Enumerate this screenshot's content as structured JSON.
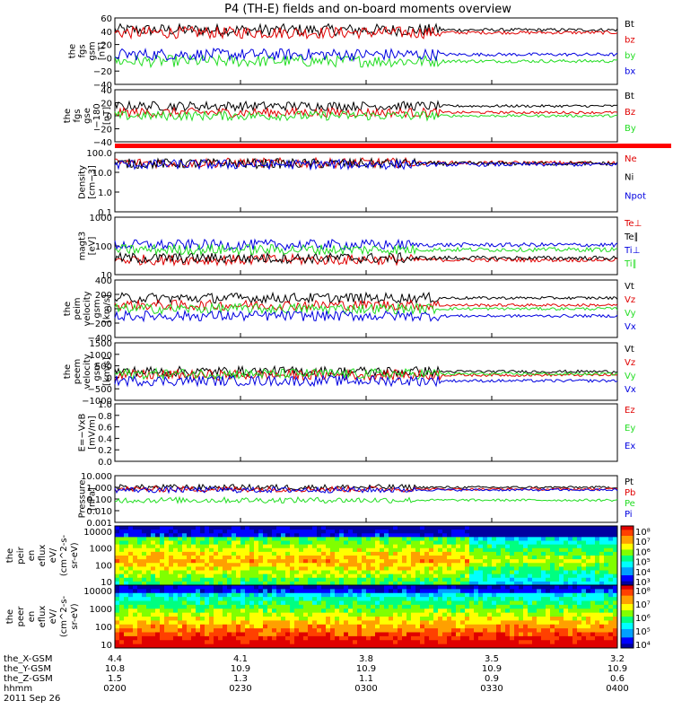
{
  "title": "P4 (TH-E) fields and on-board moments overview",
  "colors": {
    "black": "#000000",
    "red": "#e00000",
    "green": "#22dd22",
    "blue": "#0000e0"
  },
  "chart_data": {
    "type": "line",
    "time_ticks": [
      "0200",
      "0230",
      "0300",
      "0330",
      "0400"
    ],
    "date": "2011 Sep 26",
    "ephemeris": [
      {
        "label": "the_X-GSM",
        "values": [
          "4.4",
          "4.1",
          "3.8",
          "3.5",
          "3.2"
        ]
      },
      {
        "label": "the_Y-GSM",
        "values": [
          "10.8",
          "10.9",
          "10.9",
          "10.9",
          "10.9"
        ]
      },
      {
        "label": "the_Z-GSM",
        "values": [
          "1.5",
          "1.3",
          "1.1",
          "0.9",
          "0.6"
        ]
      },
      {
        "label": "hhmm",
        "values": [
          "0200",
          "0230",
          "0300",
          "0330",
          "0400"
        ]
      }
    ],
    "panels": [
      {
        "ylabel": [
          "the",
          "fgs",
          "gsm",
          "[nT]"
        ],
        "ticks": [
          "60",
          "40",
          "20",
          "0",
          "−20",
          "−40"
        ],
        "ylim": [
          -40,
          60
        ],
        "series": [
          {
            "name": "Bt",
            "color": "black",
            "level": 42
          },
          {
            "name": "bz",
            "color": "red",
            "level": 38
          },
          {
            "name": "by",
            "color": "green",
            "level": -5
          },
          {
            "name": "bx",
            "color": "blue",
            "level": 5
          }
        ]
      },
      {
        "ylabel": [
          "the",
          "fgs",
          "gse",
          "−180",
          "[nT]"
        ],
        "ticks": [
          "40",
          "20",
          "0",
          "−20",
          "−40"
        ],
        "ylim": [
          -40,
          40
        ],
        "series": [
          {
            "name": "Bt",
            "color": "black",
            "level": 15
          },
          {
            "name": "Bz",
            "color": "red",
            "level": 5
          },
          {
            "name": "By",
            "color": "green",
            "level": 0
          }
        ]
      },
      {
        "ylabel": [
          "Density",
          "[cm−3]"
        ],
        "ticks": [
          "100.0",
          "10.0",
          "1.0",
          "0.1"
        ],
        "log": true,
        "ylim": [
          0.1,
          100
        ],
        "series": [
          {
            "name": "Ne",
            "color": "red",
            "level": 30
          },
          {
            "name": "Ni",
            "color": "black",
            "level": 28
          },
          {
            "name": "Npot",
            "color": "blue",
            "level": 25
          }
        ]
      },
      {
        "ylabel": [
          "magt3",
          "[eV]"
        ],
        "ticks": [
          "1000",
          "100",
          "10"
        ],
        "log": true,
        "ylim": [
          10,
          5000
        ],
        "series": [
          {
            "name": "Te⊥",
            "color": "red",
            "level": 50
          },
          {
            "name": "Te∥",
            "color": "black",
            "level": 60
          },
          {
            "name": "Ti⊥",
            "color": "blue",
            "level": 250
          },
          {
            "name": "Ti∥",
            "color": "green",
            "level": 150
          }
        ]
      },
      {
        "ylabel": [
          "the",
          "peim",
          "velocity",
          "gsm",
          "[km/s]"
        ],
        "ticks": [
          "400",
          "200",
          "0",
          "−200",
          "−400"
        ],
        "ylim": [
          -400,
          400
        ],
        "series": [
          {
            "name": "Vt",
            "color": "black",
            "level": 150
          },
          {
            "name": "Vz",
            "color": "red",
            "level": 50
          },
          {
            "name": "Vy",
            "color": "green",
            "level": 0
          },
          {
            "name": "Vx",
            "color": "blue",
            "level": -100
          }
        ]
      },
      {
        "ylabel": [
          "the",
          "peem",
          "velocity",
          "gsm",
          "[km/s]"
        ],
        "ticks": [
          "1500",
          "1000",
          "500",
          "0",
          "−500",
          "−1000"
        ],
        "ylim": [
          -1000,
          1500
        ],
        "series": [
          {
            "name": "Vt",
            "color": "black",
            "level": 250
          },
          {
            "name": "Vz",
            "color": "red",
            "level": 100
          },
          {
            "name": "Vy",
            "color": "green",
            "level": 150
          },
          {
            "name": "Vx",
            "color": "blue",
            "level": -150
          }
        ]
      },
      {
        "ylabel": [
          "E=−VxB",
          "[mV/m]"
        ],
        "ticks": [
          "1.0",
          "0.8",
          "0.6",
          "0.4",
          "0.2",
          "0.0"
        ],
        "ylim": [
          0,
          1
        ],
        "series": [
          {
            "name": "Ez",
            "color": "red"
          },
          {
            "name": "Ey",
            "color": "green"
          },
          {
            "name": "Ex",
            "color": "blue"
          }
        ]
      },
      {
        "ylabel": [
          "Pressure",
          "[nPa]"
        ],
        "ticks": [
          "10.000",
          "1.000",
          "0.100",
          "0.010",
          "0.001"
        ],
        "log": true,
        "ylim": [
          0.001,
          10
        ],
        "series": [
          {
            "name": "Pt",
            "color": "black",
            "level": 1.0
          },
          {
            "name": "Pb",
            "color": "red",
            "level": 0.7
          },
          {
            "name": "Pe",
            "color": "green",
            "level": 0.08
          },
          {
            "name": "Pi",
            "color": "blue",
            "level": 0.6
          }
        ]
      }
    ],
    "spectrograms": [
      {
        "ylabel": [
          "the",
          "peir",
          "en",
          "eflux",
          "eV/",
          "(cm^2-s-",
          "sr-eV)"
        ],
        "ticks": [
          "10000",
          "1000",
          "100",
          "10"
        ],
        "colorbar": [
          "10⁸",
          "10⁷",
          "10⁶",
          "10⁵",
          "10⁴",
          "10³"
        ]
      },
      {
        "ylabel": [
          "the",
          "peer",
          "en",
          "eflux",
          "eV/",
          "(cm^2-s-",
          "sr-eV)"
        ],
        "ticks": [
          "10000",
          "1000",
          "100",
          "10"
        ],
        "colorbar": [
          "10⁸",
          "10⁷",
          "10⁶",
          "10⁵",
          "10⁴"
        ]
      }
    ]
  }
}
